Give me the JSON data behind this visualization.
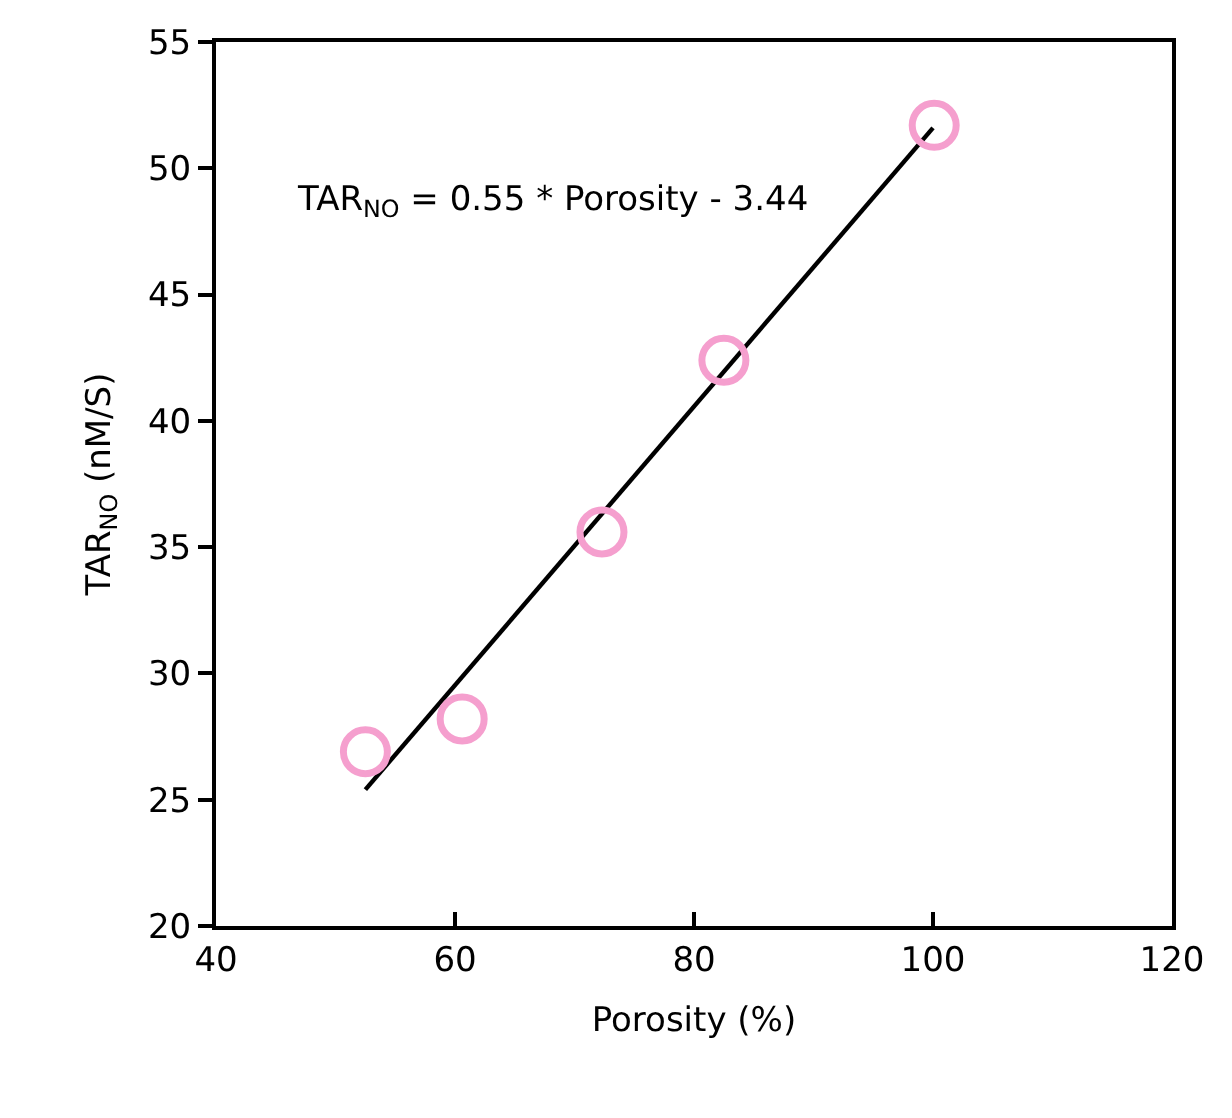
{
  "chart_data": {
    "type": "scatter",
    "xlabel": "Porosity (%)",
    "ylabel": "TAR$_{NO}$ (nM/S)",
    "x": [
      52.5,
      60.6,
      72.3,
      82.5,
      100.1
    ],
    "series": [
      {
        "color": "#f59fce",
        "values": [
          26.9,
          28.2,
          35.6,
          42.4,
          51.7
        ],
        "marker": "circle"
      },
      {
        "type": "line",
        "color": "#000000",
        "x": [
          52.5,
          100
        ],
        "values": [
          25.4,
          51.6
        ],
        "marker": "none",
        "line_style": "solid"
      }
    ],
    "xlim": [
      40,
      120
    ],
    "xticks": [
      40,
      60,
      80,
      100,
      120
    ],
    "ylim": [
      20,
      55
    ],
    "yticks": [
      20,
      25,
      30,
      35,
      40,
      45,
      50,
      55
    ],
    "grid": false,
    "annotations": [
      "TAR$_{NO}$ = 0.55 * Porosity - 3.44"
    ]
  }
}
